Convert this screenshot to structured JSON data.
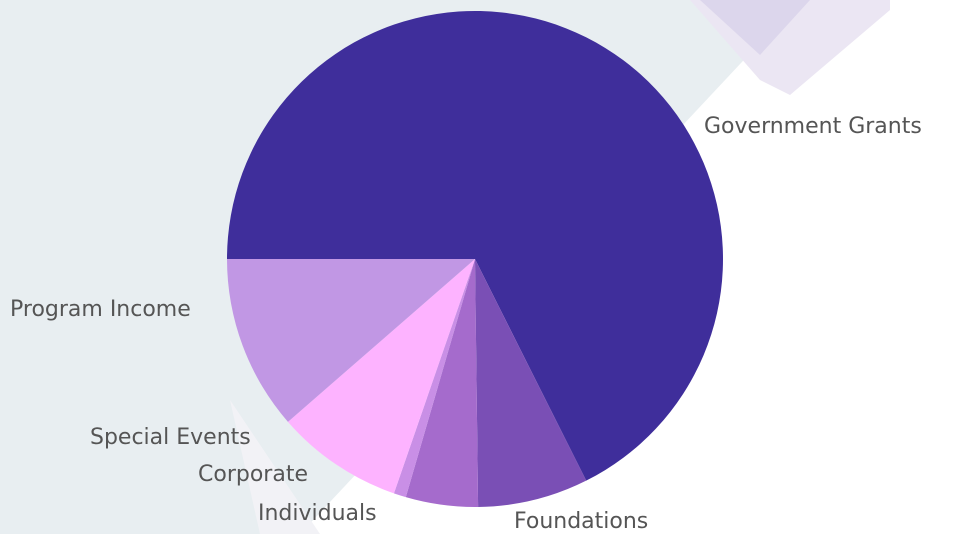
{
  "chart_data": {
    "type": "pie",
    "categories": [
      "Government Grants",
      "Foundations",
      "Individuals",
      "Corporate",
      "Special Events",
      "Program Income"
    ],
    "values": [
      67.6,
      7.2,
      4.7,
      0.8,
      8.3,
      11.4
    ],
    "colors": [
      "#3f2e9b",
      "#7a4fb5",
      "#a56bcc",
      "#c98fe6",
      "#fdb3ff",
      "#c197e4"
    ]
  }
}
